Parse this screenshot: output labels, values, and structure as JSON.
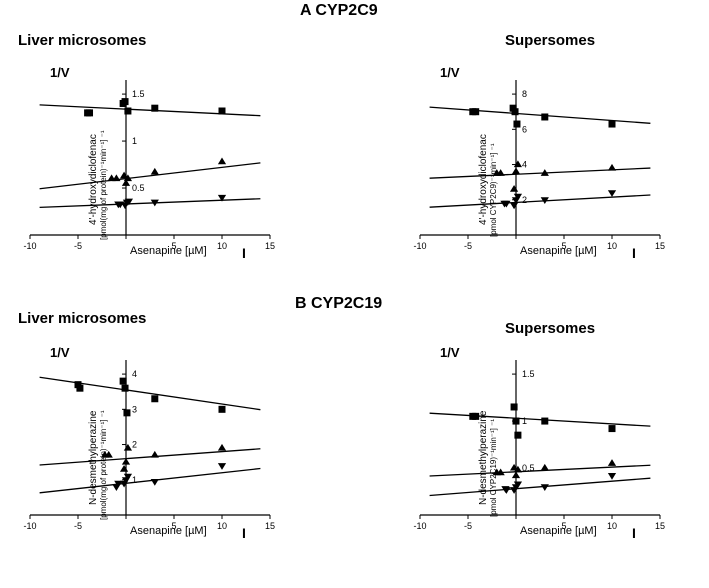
{
  "figure": {
    "panel_a_title": "A CYP2C9",
    "panel_b_title": "B CYP2C19",
    "left_subtitle": "Liver microsomes",
    "right_subtitle": "Supersomes",
    "one_over_v": "1/V",
    "x_label": "Asenapine [µM]",
    "bar_i": "I",
    "x_ticks": [
      -10,
      -5,
      0,
      5,
      10,
      15
    ],
    "colors": {
      "bg": "#ffffff",
      "axis": "#000000",
      "line": "#000000",
      "marker": "#000000"
    },
    "charts": {
      "a_left": {
        "y_label_line1": "4'-hydroxydiclofenac",
        "y_label_line2": "[pmol(mg of protein)⁻¹min⁻¹] ⁻¹",
        "y_ticks": [
          0.5,
          1.0,
          1.5
        ],
        "series": [
          {
            "marker": "square",
            "points": [
              [
                -4,
                1.3
              ],
              [
                -3.8,
                1.3
              ],
              [
                -0.3,
                1.4
              ],
              [
                -0.1,
                1.42
              ],
              [
                0.2,
                1.32
              ],
              [
                3,
                1.35
              ],
              [
                10,
                1.32
              ]
            ],
            "line_y0": 1.34,
            "line_slope": -0.005
          },
          {
            "marker": "triangle",
            "points": [
              [
                -1.5,
                0.6
              ],
              [
                -1,
                0.6
              ],
              [
                -0.2,
                0.63
              ],
              [
                0,
                0.55
              ],
              [
                0.2,
                0.6
              ],
              [
                3,
                0.67
              ],
              [
                10,
                0.78
              ]
            ],
            "line_y0": 0.6,
            "line_slope": 0.012
          },
          {
            "marker": "down",
            "points": [
              [
                -0.8,
                0.33
              ],
              [
                -0.6,
                0.33
              ],
              [
                -0.1,
                0.32
              ],
              [
                0.1,
                0.35
              ],
              [
                0.3,
                0.36
              ],
              [
                3,
                0.35
              ],
              [
                10,
                0.4
              ]
            ],
            "line_y0": 0.33,
            "line_slope": 0.004
          }
        ]
      },
      "a_right": {
        "y_label_line1": "4'-hydroxydiclofenac",
        "y_label_line2": "[pmol CYP2C9)⁻¹min⁻¹] ⁻¹",
        "y_ticks": [
          2,
          4,
          6,
          8
        ],
        "series": [
          {
            "marker": "square",
            "points": [
              [
                -4.5,
                7.0
              ],
              [
                -4.2,
                7.0
              ],
              [
                -0.3,
                7.2
              ],
              [
                -0.1,
                7.0
              ],
              [
                0.1,
                6.3
              ],
              [
                3,
                6.7
              ],
              [
                10,
                6.3
              ]
            ],
            "line_y0": 6.9,
            "line_slope": -0.04
          },
          {
            "marker": "triangle",
            "points": [
              [
                -2,
                3.5
              ],
              [
                -1.6,
                3.5
              ],
              [
                -0.2,
                2.6
              ],
              [
                0,
                3.6
              ],
              [
                0.2,
                4.0
              ],
              [
                3,
                3.5
              ],
              [
                10,
                3.8
              ]
            ],
            "line_y0": 3.45,
            "line_slope": 0.025
          },
          {
            "marker": "down",
            "points": [
              [
                -1.2,
                1.8
              ],
              [
                -1,
                1.8
              ],
              [
                -0.2,
                1.7
              ],
              [
                0,
                2.0
              ],
              [
                0.2,
                2.2
              ],
              [
                3,
                2.0
              ],
              [
                10,
                2.4
              ]
            ],
            "line_y0": 1.85,
            "line_slope": 0.03
          }
        ]
      },
      "b_left": {
        "y_label_line1": "N-desmethylperazine",
        "y_label_line2": "[pmol(mg of protein)⁻¹min⁻¹] ⁻¹",
        "y_ticks": [
          1,
          2,
          3,
          4
        ],
        "series": [
          {
            "marker": "square",
            "points": [
              [
                -5,
                3.7
              ],
              [
                -4.8,
                3.6
              ],
              [
                -0.3,
                3.8
              ],
              [
                -0.1,
                3.6
              ],
              [
                0.1,
                2.9
              ],
              [
                3,
                3.3
              ],
              [
                10,
                3.0
              ]
            ],
            "line_y0": 3.55,
            "line_slope": -0.04
          },
          {
            "marker": "triangle",
            "points": [
              [
                -2.2,
                1.7
              ],
              [
                -1.8,
                1.7
              ],
              [
                -0.2,
                1.3
              ],
              [
                0,
                1.5
              ],
              [
                0.2,
                1.9
              ],
              [
                3,
                1.7
              ],
              [
                10,
                1.9
              ]
            ],
            "line_y0": 1.6,
            "line_slope": 0.02
          },
          {
            "marker": "down",
            "points": [
              [
                -1,
                0.8
              ],
              [
                -0.8,
                0.9
              ],
              [
                -0.2,
                0.9
              ],
              [
                0,
                1.0
              ],
              [
                0.2,
                1.1
              ],
              [
                3,
                0.95
              ],
              [
                10,
                1.4
              ]
            ],
            "line_y0": 0.9,
            "line_slope": 0.03
          }
        ]
      },
      "b_right": {
        "y_label_line1": "N-desmethylperazine",
        "y_label_line2": "[pmol CYP2C19)⁻¹min⁻¹] ⁻¹",
        "y_ticks": [
          0.5,
          1.0,
          1.5
        ],
        "series": [
          {
            "marker": "square",
            "points": [
              [
                -4.5,
                1.05
              ],
              [
                -4.2,
                1.05
              ],
              [
                -0.2,
                1.15
              ],
              [
                0,
                1.0
              ],
              [
                0.2,
                0.85
              ],
              [
                3,
                1.0
              ],
              [
                10,
                0.92
              ]
            ],
            "line_y0": 1.03,
            "line_slope": -0.006
          },
          {
            "marker": "triangle",
            "points": [
              [
                -2,
                0.45
              ],
              [
                -1.6,
                0.45
              ],
              [
                -0.2,
                0.5
              ],
              [
                0,
                0.42
              ],
              [
                0.2,
                0.48
              ],
              [
                3,
                0.5
              ],
              [
                10,
                0.55
              ]
            ],
            "line_y0": 0.46,
            "line_slope": 0.005
          },
          {
            "marker": "down",
            "points": [
              [
                -1.1,
                0.28
              ],
              [
                -1,
                0.27
              ],
              [
                -0.2,
                0.27
              ],
              [
                0,
                0.3
              ],
              [
                0.2,
                0.33
              ],
              [
                3,
                0.3
              ],
              [
                10,
                0.42
              ]
            ],
            "line_y0": 0.28,
            "line_slope": 0.008
          }
        ]
      }
    }
  }
}
